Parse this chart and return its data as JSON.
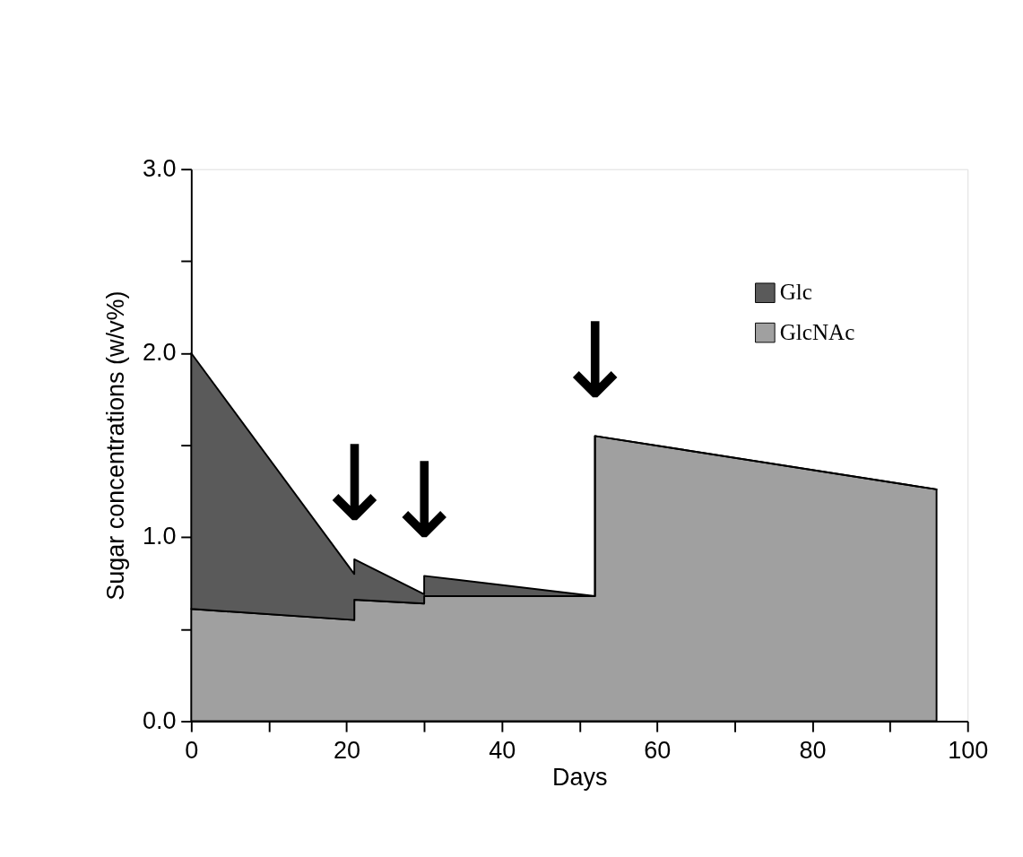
{
  "chart_data": {
    "type": "area",
    "stacked": true,
    "x": [
      0,
      21,
      21,
      30,
      30,
      52,
      52,
      96
    ],
    "series": [
      {
        "name": "GlcNAc",
        "color": "#a0a0a0",
        "values": [
          0.61,
          0.55,
          0.66,
          0.64,
          0.68,
          0.68,
          1.55,
          1.26
        ]
      },
      {
        "name": "Glc",
        "color": "#5a5a5a",
        "values": [
          1.39,
          0.25,
          0.22,
          0.05,
          0.11,
          0,
          0,
          0
        ]
      }
    ],
    "xlabel": "Days",
    "ylabel": "Sugar concentrations (w/v%)",
    "xlim": [
      0,
      100
    ],
    "xticks": [
      0,
      {
        "value": 10,
        "label": null
      },
      20,
      {
        "value": 30,
        "label": null
      },
      40,
      {
        "value": 50,
        "label": null
      },
      60,
      {
        "value": 70,
        "label": null
      },
      80,
      {
        "value": 90,
        "label": null
      },
      100
    ],
    "ylim": [
      0,
      3
    ],
    "yticks": [
      {
        "value": 0,
        "label": "0.0"
      },
      {
        "value": 0.5,
        "label": null
      },
      {
        "value": 1,
        "label": "1.0"
      },
      {
        "value": 1.5,
        "label": null
      },
      {
        "value": 2,
        "label": "2.0"
      },
      {
        "value": 2.5,
        "label": null
      },
      {
        "value": 3,
        "label": "3.0"
      }
    ],
    "annotations": [
      {
        "text": "↓",
        "x": 21,
        "y": 0.88
      },
      {
        "text": "↓",
        "x": 30,
        "y": 0.79
      },
      {
        "text": "↓",
        "x": 52,
        "y": 1.55
      }
    ],
    "legend": "top right",
    "grid": false
  }
}
